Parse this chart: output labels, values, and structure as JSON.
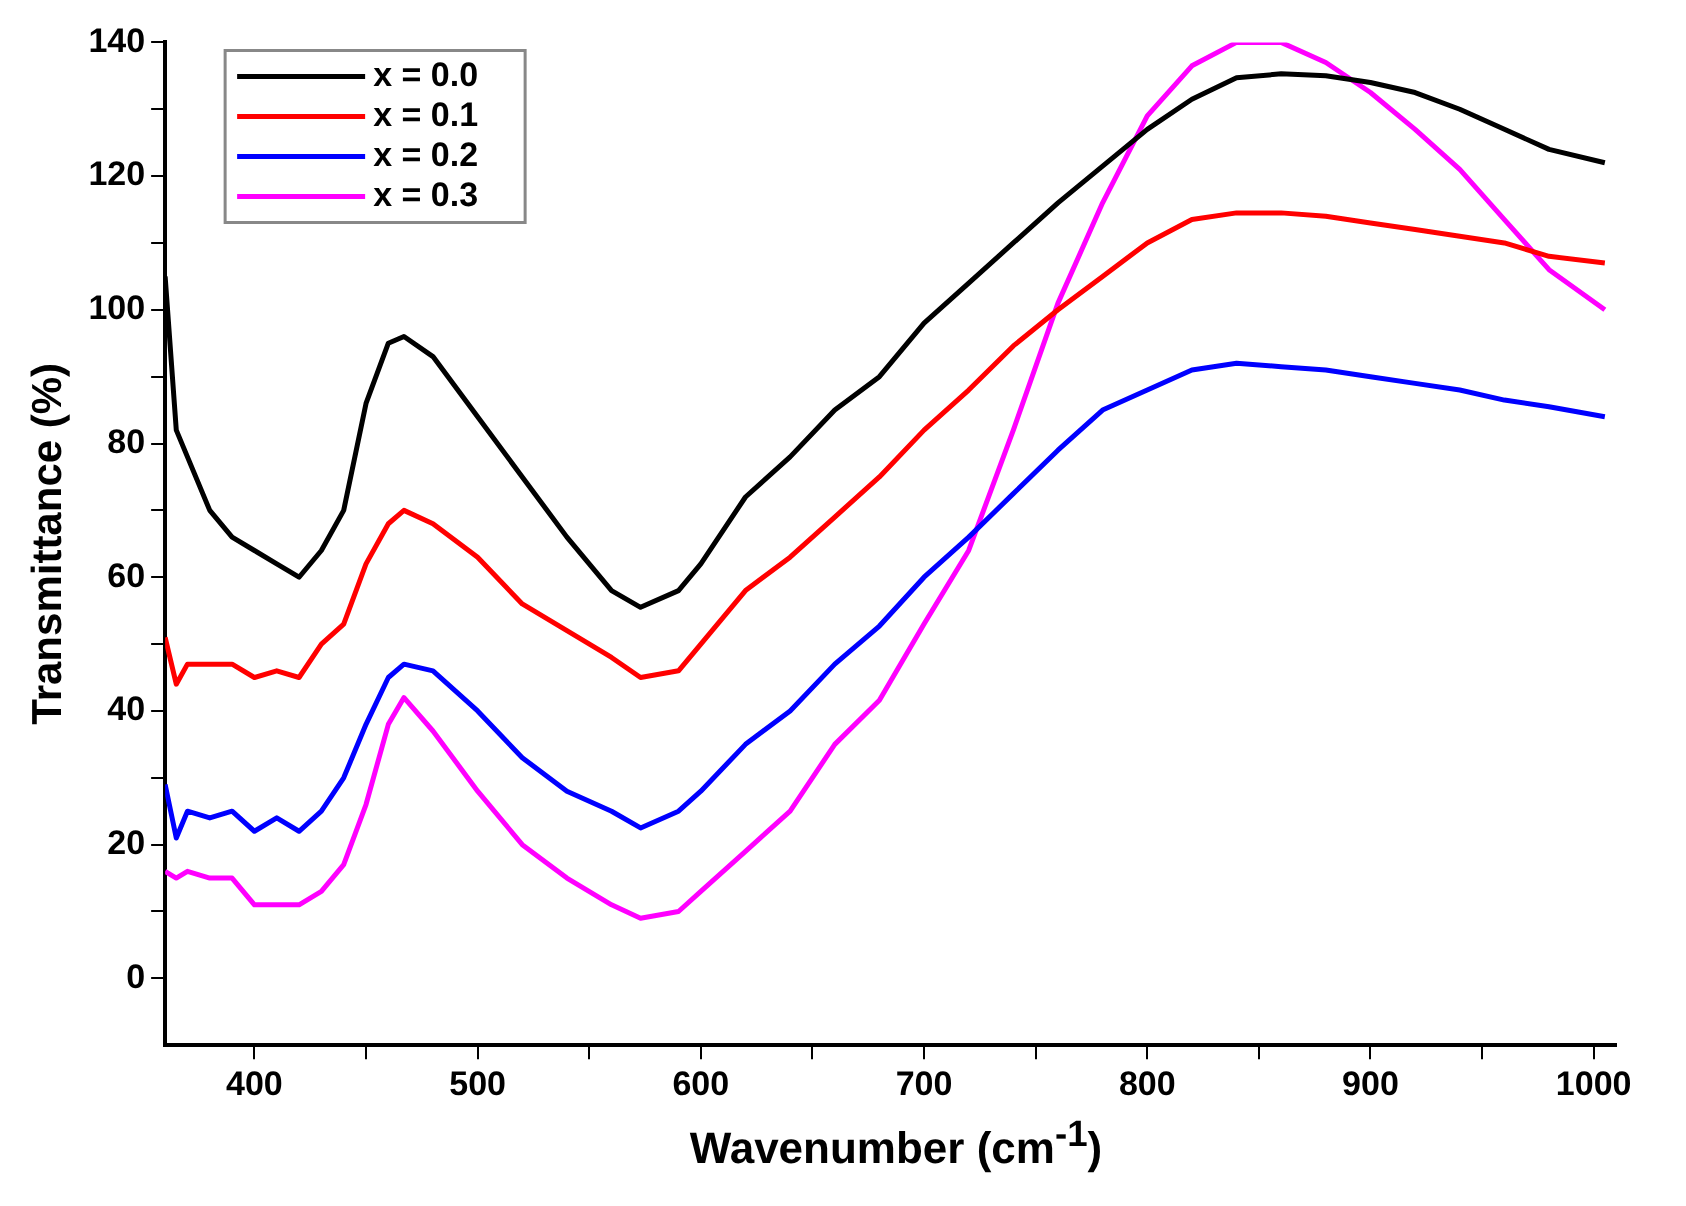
{
  "chart_data": {
    "type": "line",
    "xlabel": "Wavenumber (cm$^{-1}$)",
    "ylabel": "Transmittance (%)",
    "x": [
      360,
      365,
      370,
      380,
      390,
      400,
      410,
      420,
      430,
      440,
      450,
      460,
      467,
      480,
      500,
      520,
      540,
      560,
      573,
      590,
      600,
      620,
      640,
      660,
      680,
      700,
      720,
      740,
      760,
      780,
      800,
      820,
      840,
      860,
      880,
      900,
      920,
      940,
      960,
      980,
      1005
    ],
    "series": [
      {
        "name": "x = 0.0",
        "color": "#000000",
        "values": [
          105,
          82,
          78,
          70,
          66,
          64,
          62,
          60,
          64,
          70,
          86,
          95,
          96,
          93,
          84,
          75,
          66,
          58,
          55.5,
          58,
          62,
          72,
          78,
          85,
          90,
          98,
          104,
          110,
          116,
          121.5,
          127,
          131.5,
          134.7,
          135.3,
          135,
          134,
          132.5,
          130,
          127,
          124,
          122
        ]
      },
      {
        "name": "x = 0.1",
        "color": "#ff0000",
        "values": [
          51,
          44,
          47,
          47,
          47,
          45,
          46,
          45,
          50,
          53,
          62,
          68,
          70,
          68,
          63,
          56,
          52,
          48,
          45,
          46,
          50,
          58,
          63,
          69,
          75,
          82,
          88,
          94.6,
          100,
          105,
          110,
          113.5,
          114.5,
          114.5,
          114,
          113,
          112,
          111,
          110,
          108,
          107
        ]
      },
      {
        "name": "x = 0.2",
        "color": "#0000ff",
        "values": [
          29,
          21,
          25,
          24,
          25,
          22,
          24,
          22,
          25,
          30,
          38,
          45,
          47,
          46,
          40,
          33,
          28,
          25,
          22.5,
          25,
          28,
          35,
          40,
          47,
          52.7,
          60,
          66,
          72.5,
          79,
          85,
          88,
          91,
          92,
          91.5,
          91,
          90,
          89,
          88,
          86.5,
          85.5,
          84
        ]
      },
      {
        "name": "x = 0.3",
        "color": "#ff00ff",
        "values": [
          16,
          15,
          16,
          15,
          15,
          11,
          11,
          11,
          13,
          17,
          26,
          38,
          42,
          37,
          28,
          20,
          15,
          11,
          9,
          10,
          13,
          19,
          25,
          35,
          41.6,
          53,
          64,
          82,
          101,
          116,
          129,
          136.5,
          140,
          140,
          137,
          132.5,
          127,
          121,
          113.5,
          106,
          100
        ]
      }
    ],
    "xlim": [
      360,
      1010
    ],
    "xticks": [
      400,
      {
        "value": 450,
        "label": null
      },
      500,
      {
        "value": 550,
        "label": null
      },
      600,
      {
        "value": 650,
        "label": null
      },
      700,
      {
        "value": 750,
        "label": null
      },
      800,
      {
        "value": 850,
        "label": null
      },
      900,
      {
        "value": 950,
        "label": null
      },
      1000
    ],
    "ylim": [
      -10,
      140
    ],
    "yticks": [
      0,
      {
        "value": 10,
        "label": null
      },
      20,
      {
        "value": 30,
        "label": null
      },
      40,
      {
        "value": 50,
        "label": null
      },
      60,
      {
        "value": 70,
        "label": null
      },
      80,
      {
        "value": 90,
        "label": null
      },
      100,
      {
        "value": 110,
        "label": null
      },
      120,
      {
        "value": 130,
        "label": null
      },
      140
    ],
    "grid": false,
    "legend": "top left",
    "marker": "none",
    "line_style": "solid"
  }
}
